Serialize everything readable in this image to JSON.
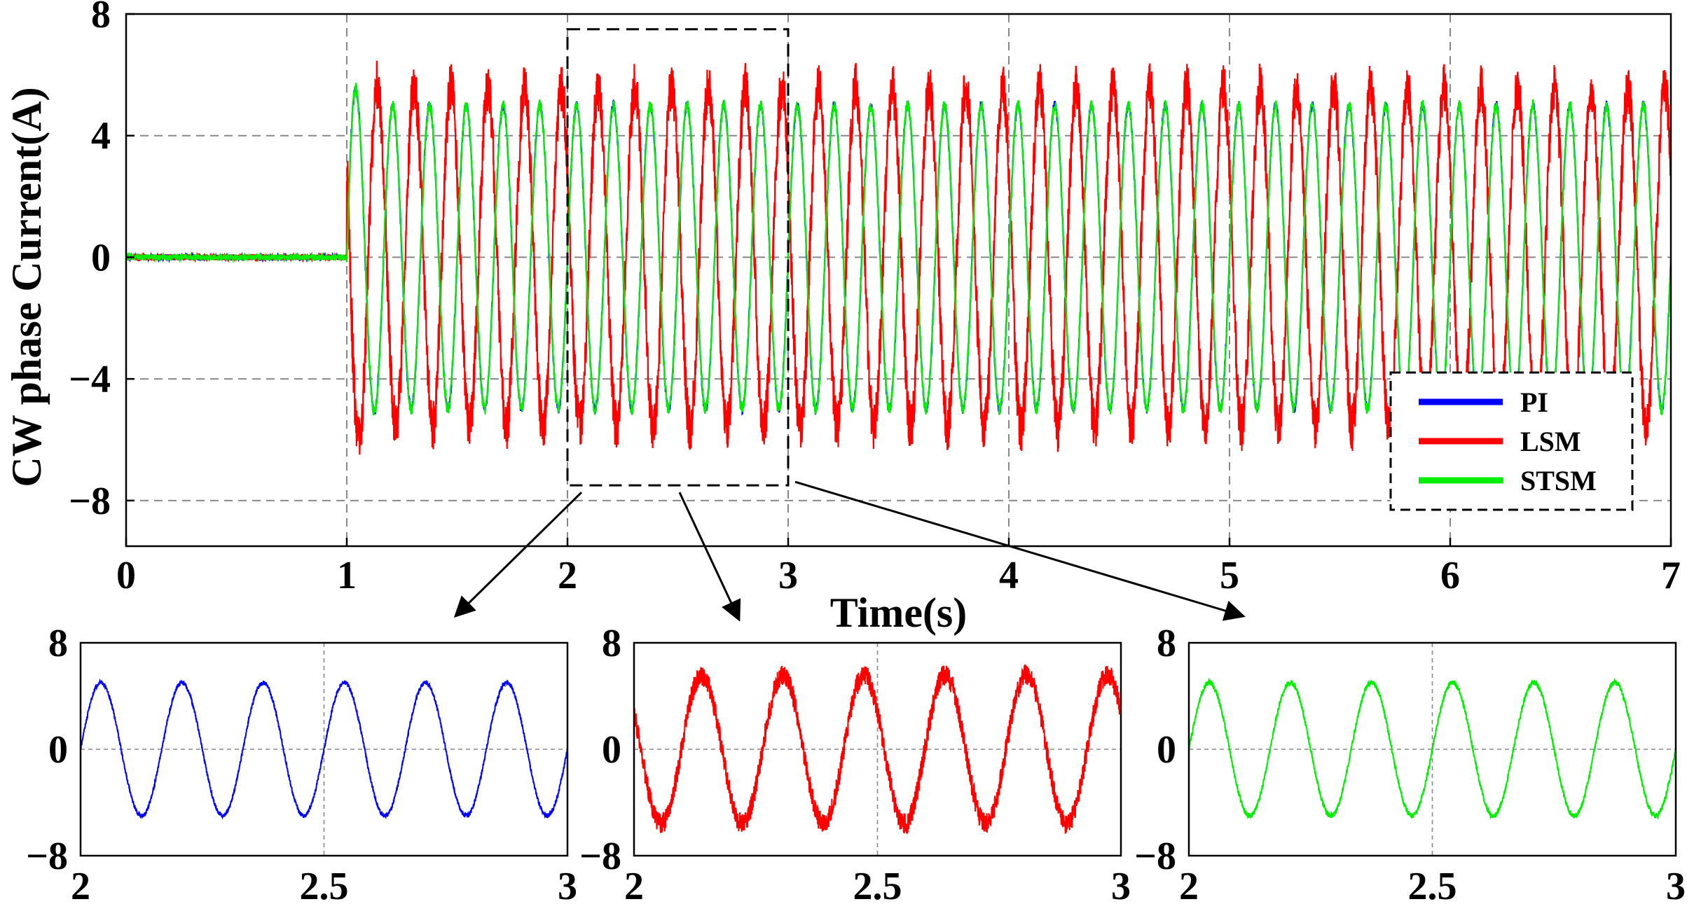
{
  "chart_data": [
    {
      "type": "line",
      "title": "",
      "xlabel": "Time(s)",
      "ylabel": "CW phase Current(A)",
      "xlim": [
        0,
        7
      ],
      "ylim": [
        -9.5,
        8
      ],
      "xticks": [
        0,
        1,
        2,
        3,
        4,
        5,
        6,
        7
      ],
      "xtick_labels": [
        "0",
        "1",
        "2",
        "3",
        "4",
        "5",
        "6",
        "7"
      ],
      "yticks": [
        8,
        4,
        0,
        -4,
        -8
      ],
      "ytick_labels": [
        "8",
        "4",
        "0",
        "−4",
        "−8"
      ],
      "grid": true,
      "legend_position": "bottom-right",
      "signal": {
        "start_time": 1.0,
        "frequency_hz": 6.0,
        "pre_start_value": 0
      },
      "series": [
        {
          "name": "PI",
          "color": "#0000ff",
          "amplitude": 5.0,
          "phase_deg": 0,
          "ripple": 0.15
        },
        {
          "name": "LSM",
          "color": "#ff0000",
          "amplitude": 5.6,
          "phase_deg": 150,
          "ripple": 0.8
        },
        {
          "name": "STSM",
          "color": "#00ee00",
          "amplitude": 5.0,
          "phase_deg": 0,
          "ripple": 0.2
        }
      ]
    },
    {
      "type": "line",
      "series_ref": "PI",
      "color": "#0000ff",
      "xlim": [
        2,
        3
      ],
      "ylim": [
        -8,
        8
      ],
      "xticks": [
        2,
        2.5,
        3
      ],
      "xtick_labels": [
        "2",
        "2.5",
        "3"
      ],
      "yticks": [
        8,
        0,
        -8
      ],
      "ytick_labels": [
        "8",
        "0",
        "−8"
      ],
      "grid": true
    },
    {
      "type": "line",
      "series_ref": "LSM",
      "color": "#ff0000",
      "xlim": [
        2,
        3
      ],
      "ylim": [
        -8,
        8
      ],
      "xticks": [
        2,
        2.5,
        3
      ],
      "xtick_labels": [
        "2",
        "2.5",
        "3"
      ],
      "yticks": [
        8,
        0,
        -8
      ],
      "ytick_labels": [
        "8",
        "0",
        "−8"
      ],
      "grid": true
    },
    {
      "type": "line",
      "series_ref": "STSM",
      "color": "#00ee00",
      "xlim": [
        2,
        3
      ],
      "ylim": [
        -8,
        8
      ],
      "xticks": [
        2,
        2.5,
        3
      ],
      "xtick_labels": [
        "2",
        "2.5",
        "3"
      ],
      "yticks": [
        8,
        0,
        -8
      ],
      "ytick_labels": [
        "8",
        "0",
        "−8"
      ],
      "grid": true
    }
  ]
}
